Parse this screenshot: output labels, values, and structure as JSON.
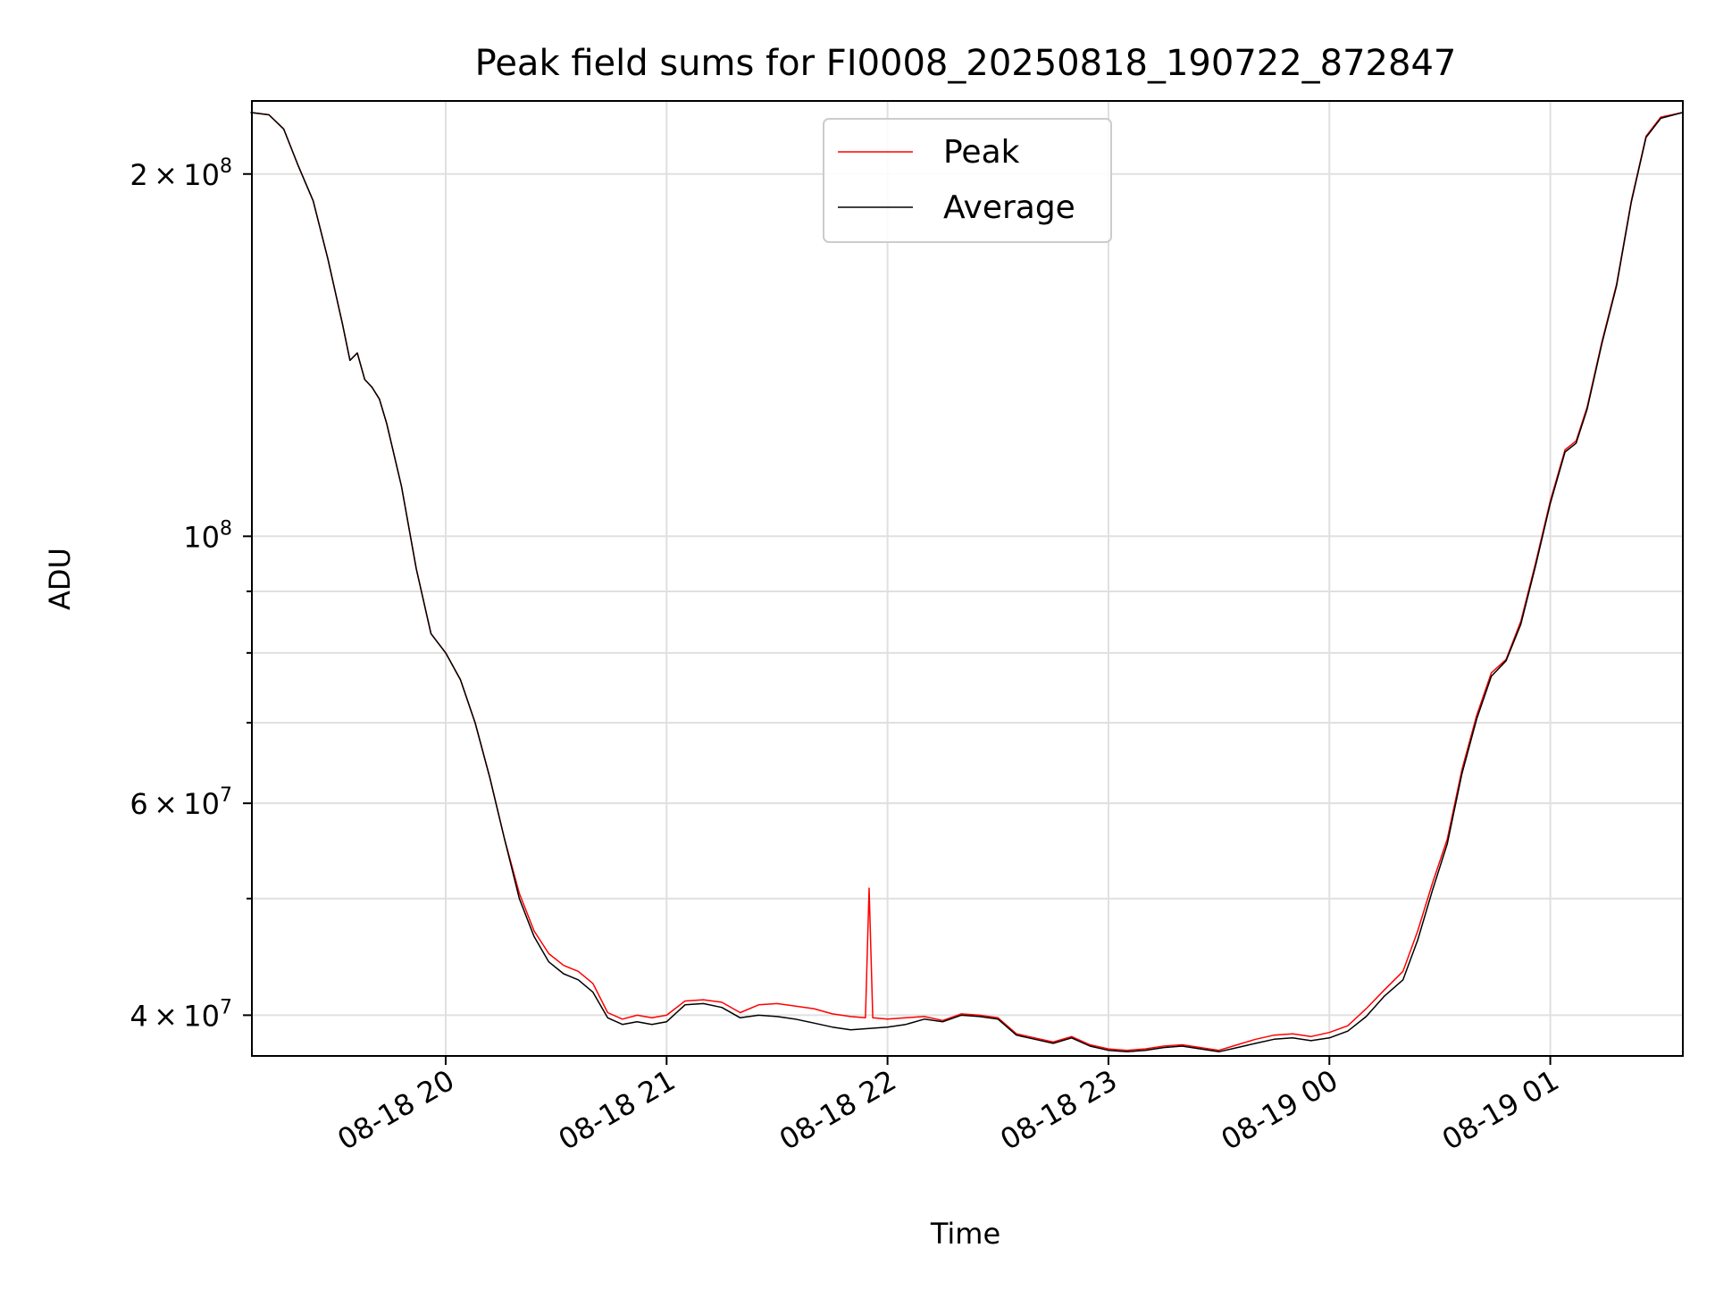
{
  "chart_data": {
    "type": "line",
    "title": "Peak field sums for FI0008_20250818_190722_872847",
    "xlabel": "Time",
    "ylabel": "ADU",
    "y_scale": "log",
    "ylim": [
      37000000,
      230000000
    ],
    "xlim": [
      "2025-08-18 19:07:22",
      "2025-08-19 01:36:00"
    ],
    "grid": true,
    "legend_position": "upper center",
    "x_ticks": [
      {
        "time": "2025-08-18 20:00",
        "label": "08-18 20"
      },
      {
        "time": "2025-08-18 21:00",
        "label": "08-18 21"
      },
      {
        "time": "2025-08-18 22:00",
        "label": "08-18 22"
      },
      {
        "time": "2025-08-18 23:00",
        "label": "08-18 23"
      },
      {
        "time": "2025-08-19 00:00",
        "label": "08-19 00"
      },
      {
        "time": "2025-08-19 01:00",
        "label": "08-19 01"
      }
    ],
    "y_major_ticks": [
      {
        "value": 40000000,
        "mantissa": "4",
        "exp": "7"
      },
      {
        "value": 60000000,
        "mantissa": "6",
        "exp": "7"
      },
      {
        "value": 100000000,
        "mantissa": "",
        "exp": "8"
      },
      {
        "value": 200000000,
        "mantissa": "2",
        "exp": "8"
      }
    ],
    "y_minor_ticks": [
      50000000,
      70000000,
      80000000,
      90000000
    ],
    "series": [
      {
        "name": "Peak",
        "color": "#ff0000",
        "points": [
          [
            "2025-08-18 19:07",
            225000000
          ],
          [
            "2025-08-18 19:12",
            224000000
          ],
          [
            "2025-08-18 19:16",
            218000000
          ],
          [
            "2025-08-18 19:20",
            203000000
          ],
          [
            "2025-08-18 19:24",
            190000000
          ],
          [
            "2025-08-18 19:28",
            170000000
          ],
          [
            "2025-08-18 19:32",
            150000000
          ],
          [
            "2025-08-18 19:34",
            140000000
          ],
          [
            "2025-08-18 19:36",
            142000000
          ],
          [
            "2025-08-18 19:38",
            135000000
          ],
          [
            "2025-08-18 19:40",
            133000000
          ],
          [
            "2025-08-18 19:42",
            130000000
          ],
          [
            "2025-08-18 19:44",
            124000000
          ],
          [
            "2025-08-18 19:48",
            110000000
          ],
          [
            "2025-08-18 19:52",
            94000000
          ],
          [
            "2025-08-18 19:56",
            83000000
          ],
          [
            "2025-08-18 20:00",
            80000000
          ],
          [
            "2025-08-18 20:04",
            76000000
          ],
          [
            "2025-08-18 20:08",
            70000000
          ],
          [
            "2025-08-18 20:12",
            63000000
          ],
          [
            "2025-08-18 20:16",
            56000000
          ],
          [
            "2025-08-18 20:20",
            50500000
          ],
          [
            "2025-08-18 20:24",
            47000000
          ],
          [
            "2025-08-18 20:28",
            45000000
          ],
          [
            "2025-08-18 20:32",
            44000000
          ],
          [
            "2025-08-18 20:36",
            43500000
          ],
          [
            "2025-08-18 20:40",
            42500000
          ],
          [
            "2025-08-18 20:44",
            40200000
          ],
          [
            "2025-08-18 20:48",
            39700000
          ],
          [
            "2025-08-18 20:52",
            40000000
          ],
          [
            "2025-08-18 20:56",
            39800000
          ],
          [
            "2025-08-18 21:00",
            40000000
          ],
          [
            "2025-08-18 21:05",
            41100000
          ],
          [
            "2025-08-18 21:10",
            41200000
          ],
          [
            "2025-08-18 21:15",
            41000000
          ],
          [
            "2025-08-18 21:20",
            40200000
          ],
          [
            "2025-08-18 21:25",
            40800000
          ],
          [
            "2025-08-18 21:30",
            40900000
          ],
          [
            "2025-08-18 21:35",
            40700000
          ],
          [
            "2025-08-18 21:40",
            40500000
          ],
          [
            "2025-08-18 21:45",
            40100000
          ],
          [
            "2025-08-18 21:50",
            39900000
          ],
          [
            "2025-08-18 21:54",
            39800000
          ],
          [
            "2025-08-18 21:55",
            51000000
          ],
          [
            "2025-08-18 21:56",
            39800000
          ],
          [
            "2025-08-18 22:00",
            39700000
          ],
          [
            "2025-08-18 22:05",
            39800000
          ],
          [
            "2025-08-18 22:10",
            39900000
          ],
          [
            "2025-08-18 22:15",
            39600000
          ],
          [
            "2025-08-18 22:20",
            40100000
          ],
          [
            "2025-08-18 22:25",
            40000000
          ],
          [
            "2025-08-18 22:30",
            39800000
          ],
          [
            "2025-08-18 22:35",
            38600000
          ],
          [
            "2025-08-18 22:40",
            38300000
          ],
          [
            "2025-08-18 22:45",
            38000000
          ],
          [
            "2025-08-18 22:50",
            38400000
          ],
          [
            "2025-08-18 22:55",
            37800000
          ],
          [
            "2025-08-18 23:00",
            37500000
          ],
          [
            "2025-08-18 23:05",
            37400000
          ],
          [
            "2025-08-18 23:10",
            37500000
          ],
          [
            "2025-08-18 23:15",
            37700000
          ],
          [
            "2025-08-18 23:20",
            37800000
          ],
          [
            "2025-08-18 23:25",
            37600000
          ],
          [
            "2025-08-18 23:30",
            37400000
          ],
          [
            "2025-08-18 23:35",
            37800000
          ],
          [
            "2025-08-18 23:40",
            38200000
          ],
          [
            "2025-08-18 23:45",
            38500000
          ],
          [
            "2025-08-18 23:50",
            38600000
          ],
          [
            "2025-08-18 23:55",
            38400000
          ],
          [
            "2025-08-19 00:00",
            38700000
          ],
          [
            "2025-08-19 00:05",
            39200000
          ],
          [
            "2025-08-19 00:10",
            40500000
          ],
          [
            "2025-08-19 00:15",
            42000000
          ],
          [
            "2025-08-19 00:20",
            43500000
          ],
          [
            "2025-08-19 00:24",
            47000000
          ],
          [
            "2025-08-19 00:28",
            51500000
          ],
          [
            "2025-08-19 00:32",
            56000000
          ],
          [
            "2025-08-19 00:36",
            64000000
          ],
          [
            "2025-08-19 00:40",
            71000000
          ],
          [
            "2025-08-19 00:44",
            77000000
          ],
          [
            "2025-08-19 00:48",
            79000000
          ],
          [
            "2025-08-19 00:52",
            85000000
          ],
          [
            "2025-08-19 00:56",
            95000000
          ],
          [
            "2025-08-19 01:00",
            107000000
          ],
          [
            "2025-08-19 01:04",
            118000000
          ],
          [
            "2025-08-19 01:07",
            120000000
          ],
          [
            "2025-08-19 01:10",
            128000000
          ],
          [
            "2025-08-19 01:14",
            145000000
          ],
          [
            "2025-08-19 01:18",
            162000000
          ],
          [
            "2025-08-19 01:22",
            190000000
          ],
          [
            "2025-08-19 01:26",
            215000000
          ],
          [
            "2025-08-19 01:30",
            223000000
          ],
          [
            "2025-08-19 01:36",
            225000000
          ]
        ]
      },
      {
        "name": "Average",
        "color": "#000000",
        "points": [
          [
            "2025-08-18 19:07",
            225000000
          ],
          [
            "2025-08-18 19:12",
            224000000
          ],
          [
            "2025-08-18 19:16",
            218000000
          ],
          [
            "2025-08-18 19:20",
            203000000
          ],
          [
            "2025-08-18 19:24",
            190000000
          ],
          [
            "2025-08-18 19:28",
            170000000
          ],
          [
            "2025-08-18 19:32",
            150000000
          ],
          [
            "2025-08-18 19:34",
            140000000
          ],
          [
            "2025-08-18 19:36",
            142000000
          ],
          [
            "2025-08-18 19:38",
            135000000
          ],
          [
            "2025-08-18 19:40",
            133000000
          ],
          [
            "2025-08-18 19:42",
            130000000
          ],
          [
            "2025-08-18 19:44",
            124000000
          ],
          [
            "2025-08-18 19:48",
            110000000
          ],
          [
            "2025-08-18 19:52",
            94000000
          ],
          [
            "2025-08-18 19:56",
            83000000
          ],
          [
            "2025-08-18 20:00",
            80000000
          ],
          [
            "2025-08-18 20:04",
            76000000
          ],
          [
            "2025-08-18 20:08",
            70000000
          ],
          [
            "2025-08-18 20:12",
            63000000
          ],
          [
            "2025-08-18 20:16",
            56000000
          ],
          [
            "2025-08-18 20:20",
            50000000
          ],
          [
            "2025-08-18 20:24",
            46500000
          ],
          [
            "2025-08-18 20:28",
            44300000
          ],
          [
            "2025-08-18 20:32",
            43300000
          ],
          [
            "2025-08-18 20:36",
            42800000
          ],
          [
            "2025-08-18 20:40",
            41800000
          ],
          [
            "2025-08-18 20:44",
            39800000
          ],
          [
            "2025-08-18 20:48",
            39300000
          ],
          [
            "2025-08-18 20:52",
            39500000
          ],
          [
            "2025-08-18 20:56",
            39300000
          ],
          [
            "2025-08-18 21:00",
            39500000
          ],
          [
            "2025-08-18 21:05",
            40800000
          ],
          [
            "2025-08-18 21:10",
            40900000
          ],
          [
            "2025-08-18 21:15",
            40600000
          ],
          [
            "2025-08-18 21:20",
            39800000
          ],
          [
            "2025-08-18 21:25",
            40000000
          ],
          [
            "2025-08-18 21:30",
            39900000
          ],
          [
            "2025-08-18 21:35",
            39700000
          ],
          [
            "2025-08-18 21:40",
            39400000
          ],
          [
            "2025-08-18 21:45",
            39100000
          ],
          [
            "2025-08-18 21:50",
            38900000
          ],
          [
            "2025-08-18 21:55",
            39000000
          ],
          [
            "2025-08-18 22:00",
            39100000
          ],
          [
            "2025-08-18 22:05",
            39300000
          ],
          [
            "2025-08-18 22:10",
            39700000
          ],
          [
            "2025-08-18 22:15",
            39500000
          ],
          [
            "2025-08-18 22:20",
            40000000
          ],
          [
            "2025-08-18 22:25",
            39900000
          ],
          [
            "2025-08-18 22:30",
            39700000
          ],
          [
            "2025-08-18 22:35",
            38500000
          ],
          [
            "2025-08-18 22:40",
            38200000
          ],
          [
            "2025-08-18 22:45",
            37900000
          ],
          [
            "2025-08-18 22:50",
            38300000
          ],
          [
            "2025-08-18 22:55",
            37700000
          ],
          [
            "2025-08-18 23:00",
            37400000
          ],
          [
            "2025-08-18 23:05",
            37300000
          ],
          [
            "2025-08-18 23:10",
            37400000
          ],
          [
            "2025-08-18 23:15",
            37600000
          ],
          [
            "2025-08-18 23:20",
            37700000
          ],
          [
            "2025-08-18 23:25",
            37500000
          ],
          [
            "2025-08-18 23:30",
            37300000
          ],
          [
            "2025-08-18 23:35",
            37600000
          ],
          [
            "2025-08-18 23:40",
            37900000
          ],
          [
            "2025-08-18 23:45",
            38200000
          ],
          [
            "2025-08-18 23:50",
            38300000
          ],
          [
            "2025-08-18 23:55",
            38100000
          ],
          [
            "2025-08-19 00:00",
            38300000
          ],
          [
            "2025-08-19 00:05",
            38800000
          ],
          [
            "2025-08-19 00:10",
            39900000
          ],
          [
            "2025-08-19 00:15",
            41500000
          ],
          [
            "2025-08-19 00:20",
            42800000
          ],
          [
            "2025-08-19 00:24",
            46200000
          ],
          [
            "2025-08-19 00:28",
            50800000
          ],
          [
            "2025-08-19 00:32",
            55500000
          ],
          [
            "2025-08-19 00:36",
            63500000
          ],
          [
            "2025-08-19 00:40",
            70500000
          ],
          [
            "2025-08-19 00:44",
            76500000
          ],
          [
            "2025-08-19 00:48",
            78800000
          ],
          [
            "2025-08-19 00:52",
            84500000
          ],
          [
            "2025-08-19 00:56",
            94500000
          ],
          [
            "2025-08-19 01:00",
            106500000
          ],
          [
            "2025-08-19 01:04",
            117500000
          ],
          [
            "2025-08-19 01:07",
            119500000
          ],
          [
            "2025-08-19 01:10",
            127500000
          ],
          [
            "2025-08-19 01:14",
            144500000
          ],
          [
            "2025-08-19 01:18",
            161500000
          ],
          [
            "2025-08-19 01:22",
            189500000
          ],
          [
            "2025-08-19 01:26",
            214500000
          ],
          [
            "2025-08-19 01:30",
            222500000
          ],
          [
            "2025-08-19 01:36",
            225000000
          ]
        ]
      }
    ]
  }
}
